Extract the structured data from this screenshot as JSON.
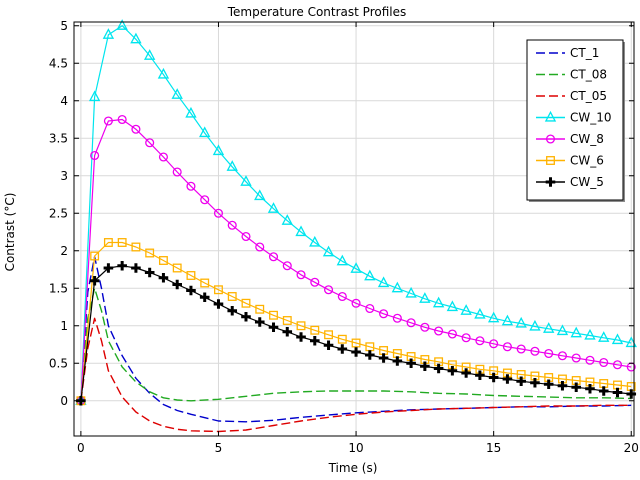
{
  "chart_data": {
    "type": "line",
    "title": "Temperature Contrast Profiles",
    "xlabel": "Time (s)",
    "ylabel": "Contrast (°C)",
    "xlim": [
      -0.25,
      20.1
    ],
    "ylim": [
      -0.47,
      5.05
    ],
    "x_ticks": [
      0,
      5,
      10,
      15,
      20
    ],
    "y_ticks": [
      0,
      0.5,
      1,
      1.5,
      2,
      2.5,
      3,
      3.5,
      4,
      4.5,
      5
    ],
    "x_tick_labels": [
      "0",
      "5",
      "10",
      "15",
      "20"
    ],
    "y_tick_labels": [
      "0",
      "0.5",
      "1",
      "1.5",
      "2",
      "2.5",
      "3",
      "3.5",
      "4",
      "4.5",
      "5"
    ],
    "grid": true,
    "legend_position": "top-right",
    "series": [
      {
        "name": "CT_1",
        "color": "#0000cc",
        "dash": "dashed",
        "marker": "none",
        "x": [
          0,
          0.25,
          0.5,
          0.75,
          1,
          1.5,
          2,
          2.5,
          3,
          3.5,
          4,
          5,
          6,
          7,
          8,
          9,
          10,
          11,
          12,
          13,
          14,
          15,
          16,
          17,
          18,
          19,
          20
        ],
        "y": [
          0,
          1.45,
          1.92,
          1.5,
          1.0,
          0.6,
          0.3,
          0.1,
          -0.05,
          -0.13,
          -0.18,
          -0.27,
          -0.28,
          -0.26,
          -0.22,
          -0.19,
          -0.16,
          -0.14,
          -0.12,
          -0.11,
          -0.1,
          -0.09,
          -0.08,
          -0.08,
          -0.07,
          -0.07,
          -0.06
        ]
      },
      {
        "name": "CT_08",
        "color": "#22aa22",
        "dash": "dashed",
        "marker": "none",
        "x": [
          0,
          0.25,
          0.5,
          0.75,
          1,
          1.5,
          2,
          2.5,
          3,
          3.5,
          4,
          5,
          6,
          7,
          8,
          9,
          10,
          11,
          12,
          13,
          14,
          15,
          16,
          17,
          18,
          19,
          20
        ],
        "y": [
          0,
          1.1,
          1.5,
          1.2,
          0.8,
          0.45,
          0.25,
          0.12,
          0.04,
          0.01,
          0.0,
          0.02,
          0.06,
          0.1,
          0.12,
          0.13,
          0.13,
          0.13,
          0.12,
          0.1,
          0.09,
          0.07,
          0.06,
          0.05,
          0.04,
          0.04,
          0.03
        ]
      },
      {
        "name": "CT_05",
        "color": "#dd0000",
        "dash": "dashed",
        "marker": "none",
        "x": [
          0,
          0.25,
          0.5,
          0.75,
          1,
          1.5,
          2,
          2.5,
          3,
          3.5,
          4,
          5,
          6,
          7,
          8,
          9,
          10,
          11,
          12,
          13,
          14,
          15,
          16,
          17,
          18,
          19,
          20
        ],
        "y": [
          0,
          0.7,
          1.1,
          0.8,
          0.4,
          0.05,
          -0.15,
          -0.27,
          -0.34,
          -0.38,
          -0.4,
          -0.41,
          -0.39,
          -0.33,
          -0.27,
          -0.22,
          -0.18,
          -0.15,
          -0.13,
          -0.11,
          -0.1,
          -0.09,
          -0.08,
          -0.07,
          -0.07,
          -0.06,
          -0.06
        ]
      },
      {
        "name": "CW_10",
        "color": "#00e5ee",
        "dash": "solid",
        "marker": "triangle",
        "x": [
          0,
          0.5,
          1,
          1.5,
          2,
          2.5,
          3,
          3.5,
          4,
          4.5,
          5,
          5.5,
          6,
          6.5,
          7,
          7.5,
          8,
          8.5,
          9,
          9.5,
          10,
          10.5,
          11,
          11.5,
          12,
          12.5,
          13,
          13.5,
          14,
          14.5,
          15,
          15.5,
          16,
          16.5,
          17,
          17.5,
          18,
          18.5,
          19,
          19.5,
          20
        ],
        "y": [
          0,
          4.05,
          4.88,
          5.0,
          4.82,
          4.6,
          4.35,
          4.08,
          3.83,
          3.57,
          3.33,
          3.12,
          2.92,
          2.73,
          2.56,
          2.4,
          2.25,
          2.11,
          1.98,
          1.86,
          1.76,
          1.66,
          1.57,
          1.5,
          1.43,
          1.36,
          1.3,
          1.25,
          1.2,
          1.15,
          1.1,
          1.06,
          1.03,
          0.99,
          0.96,
          0.93,
          0.9,
          0.87,
          0.84,
          0.81,
          0.77
        ]
      },
      {
        "name": "CW_8",
        "color": "#ee00ee",
        "dash": "solid",
        "marker": "circle",
        "x": [
          0,
          0.5,
          1,
          1.5,
          2,
          2.5,
          3,
          3.5,
          4,
          4.5,
          5,
          5.5,
          6,
          6.5,
          7,
          7.5,
          8,
          8.5,
          9,
          9.5,
          10,
          10.5,
          11,
          11.5,
          12,
          12.5,
          13,
          13.5,
          14,
          14.5,
          15,
          15.5,
          16,
          16.5,
          17,
          17.5,
          18,
          18.5,
          19,
          19.5,
          20
        ],
        "y": [
          0,
          3.27,
          3.73,
          3.75,
          3.62,
          3.44,
          3.25,
          3.05,
          2.86,
          2.68,
          2.5,
          2.34,
          2.19,
          2.05,
          1.92,
          1.8,
          1.68,
          1.58,
          1.48,
          1.39,
          1.3,
          1.23,
          1.16,
          1.1,
          1.04,
          0.98,
          0.93,
          0.89,
          0.84,
          0.8,
          0.76,
          0.72,
          0.69,
          0.66,
          0.63,
          0.6,
          0.57,
          0.54,
          0.51,
          0.48,
          0.45
        ]
      },
      {
        "name": "CW_6",
        "color": "#ffb300",
        "dash": "solid",
        "marker": "square",
        "x": [
          0,
          0.5,
          1,
          1.5,
          2,
          2.5,
          3,
          3.5,
          4,
          4.5,
          5,
          5.5,
          6,
          6.5,
          7,
          7.5,
          8,
          8.5,
          9,
          9.5,
          10,
          10.5,
          11,
          11.5,
          12,
          12.5,
          13,
          13.5,
          14,
          14.5,
          15,
          15.5,
          16,
          16.5,
          17,
          17.5,
          18,
          18.5,
          19,
          19.5,
          20
        ],
        "y": [
          0,
          1.93,
          2.11,
          2.11,
          2.05,
          1.97,
          1.87,
          1.77,
          1.67,
          1.57,
          1.48,
          1.39,
          1.3,
          1.22,
          1.14,
          1.07,
          1.0,
          0.94,
          0.88,
          0.82,
          0.77,
          0.72,
          0.67,
          0.63,
          0.59,
          0.55,
          0.52,
          0.48,
          0.45,
          0.42,
          0.4,
          0.37,
          0.35,
          0.33,
          0.31,
          0.29,
          0.27,
          0.25,
          0.23,
          0.21,
          0.19
        ]
      },
      {
        "name": "CW_5",
        "color": "#000000",
        "dash": "solid",
        "marker": "plus",
        "x": [
          0,
          0.5,
          1,
          1.5,
          2,
          2.5,
          3,
          3.5,
          4,
          4.5,
          5,
          5.5,
          6,
          6.5,
          7,
          7.5,
          8,
          8.5,
          9,
          9.5,
          10,
          10.5,
          11,
          11.5,
          12,
          12.5,
          13,
          13.5,
          14,
          14.5,
          15,
          15.5,
          16,
          16.5,
          17,
          17.5,
          18,
          18.5,
          19,
          19.5,
          20
        ],
        "y": [
          0,
          1.6,
          1.77,
          1.8,
          1.77,
          1.71,
          1.64,
          1.55,
          1.47,
          1.38,
          1.29,
          1.2,
          1.12,
          1.05,
          0.98,
          0.92,
          0.85,
          0.8,
          0.74,
          0.69,
          0.65,
          0.61,
          0.57,
          0.53,
          0.5,
          0.46,
          0.43,
          0.4,
          0.37,
          0.34,
          0.31,
          0.29,
          0.26,
          0.24,
          0.22,
          0.2,
          0.18,
          0.16,
          0.13,
          0.11,
          0.09
        ]
      }
    ]
  }
}
